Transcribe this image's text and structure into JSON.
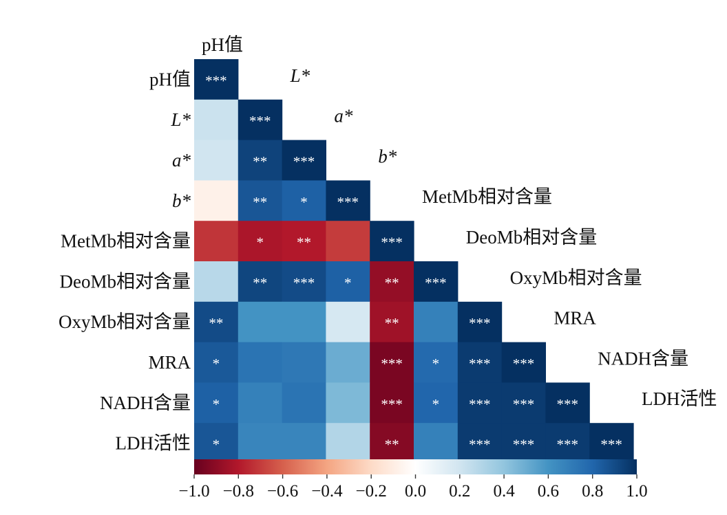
{
  "chart_data": {
    "type": "heatmap",
    "title": "",
    "variables": [
      "pH值",
      "L*",
      "a*",
      "b*",
      "MetMb相对含量",
      "DeoMb相对含量",
      "OxyMb相对含量",
      "MRA",
      "NADH含量",
      "LDH活性"
    ],
    "italic_variables": [
      "L*",
      "a*",
      "b*"
    ],
    "layout": "lower-triangle",
    "values": [
      [
        1.0
      ],
      [
        0.22,
        1.0
      ],
      [
        0.2,
        0.93,
        1.0
      ],
      [
        -0.08,
        0.86,
        0.82,
        1.0
      ],
      [
        -0.72,
        -0.82,
        -0.8,
        -0.7,
        1.0
      ],
      [
        0.28,
        0.92,
        0.9,
        0.82,
        -0.88,
        1.0
      ],
      [
        0.9,
        0.6,
        0.6,
        0.18,
        -0.85,
        0.68,
        1.0
      ],
      [
        0.85,
        0.74,
        0.72,
        0.5,
        -0.95,
        0.78,
        0.96,
        1.0
      ],
      [
        0.82,
        0.68,
        0.74,
        0.45,
        -0.95,
        0.8,
        0.96,
        0.96,
        1.0
      ],
      [
        0.86,
        0.66,
        0.66,
        0.3,
        -0.92,
        0.68,
        0.96,
        0.96,
        0.96,
        1.0
      ]
    ],
    "significance": [
      [
        "***"
      ],
      [
        "",
        "***"
      ],
      [
        "",
        "**",
        "***"
      ],
      [
        "",
        "**",
        "*",
        "***"
      ],
      [
        "",
        "*",
        "**",
        "",
        "***"
      ],
      [
        "",
        "**",
        "***",
        "*",
        "**",
        "***"
      ],
      [
        "**",
        "",
        "",
        "",
        "**",
        "",
        "***"
      ],
      [
        "*",
        "",
        "",
        "",
        "***",
        "*",
        "***",
        "***"
      ],
      [
        "*",
        "",
        "",
        "",
        "***",
        "*",
        "***",
        "***",
        "***"
      ],
      [
        "*",
        "",
        "",
        "",
        "**",
        "",
        "***",
        "***",
        "***",
        "***"
      ]
    ],
    "colorbar": {
      "range": [
        -1.0,
        1.0
      ],
      "ticks": [
        "−1.0",
        "−0.8",
        "−0.6",
        "−0.4",
        "−0.2",
        "0.0",
        "0.2",
        "0.4",
        "0.6",
        "0.8",
        "1.0"
      ],
      "colors": [
        "#67001f",
        "#b2182b",
        "#d6604d",
        "#f4a582",
        "#fddbc7",
        "#ffffff",
        "#d1e5f0",
        "#92c5de",
        "#4393c3",
        "#2166ac",
        "#053061"
      ]
    }
  }
}
